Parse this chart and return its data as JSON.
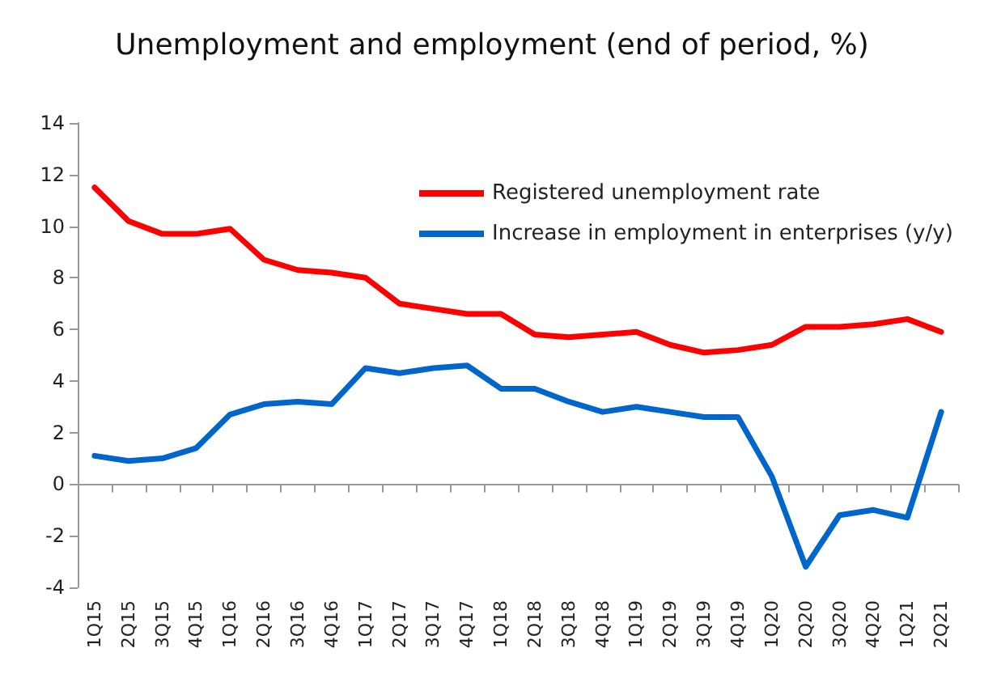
{
  "chart_data": {
    "type": "line",
    "title": "Unemployment and employment (end of period, %)",
    "categories": [
      "1Q15",
      "2Q15",
      "3Q15",
      "4Q15",
      "1Q16",
      "2Q16",
      "3Q16",
      "4Q16",
      "1Q17",
      "2Q17",
      "3Q17",
      "4Q17",
      "1Q18",
      "2Q18",
      "3Q18",
      "4Q18",
      "1Q19",
      "2Q19",
      "3Q19",
      "4Q19",
      "1Q20",
      "2Q20",
      "3Q20",
      "4Q20",
      "1Q21",
      "2Q21"
    ],
    "series": [
      {
        "name": "Registered unemployment rate",
        "color": "#ff0000",
        "values": [
          11.5,
          10.2,
          9.7,
          9.7,
          9.9,
          8.7,
          8.3,
          8.2,
          8.0,
          7.0,
          6.8,
          6.6,
          6.6,
          5.8,
          5.7,
          5.8,
          5.9,
          5.4,
          5.1,
          5.2,
          5.4,
          6.1,
          6.1,
          6.2,
          6.4,
          5.9
        ]
      },
      {
        "name": "Increase in employment in enterprises (y/y)",
        "color": "#0066cc",
        "values": [
          1.1,
          0.9,
          1.0,
          1.4,
          2.7,
          3.1,
          3.2,
          3.1,
          4.5,
          4.3,
          4.5,
          4.6,
          3.7,
          3.7,
          3.2,
          2.8,
          3.0,
          2.8,
          2.6,
          2.6,
          0.3,
          -3.2,
          -1.2,
          -1.0,
          -1.3,
          2.8
        ]
      }
    ],
    "ylim": [
      -4,
      14
    ],
    "yticks": [
      -4,
      -2,
      0,
      2,
      4,
      6,
      8,
      10,
      12,
      14
    ],
    "legend": "top right",
    "marker": "none",
    "line_style": "solid"
  }
}
